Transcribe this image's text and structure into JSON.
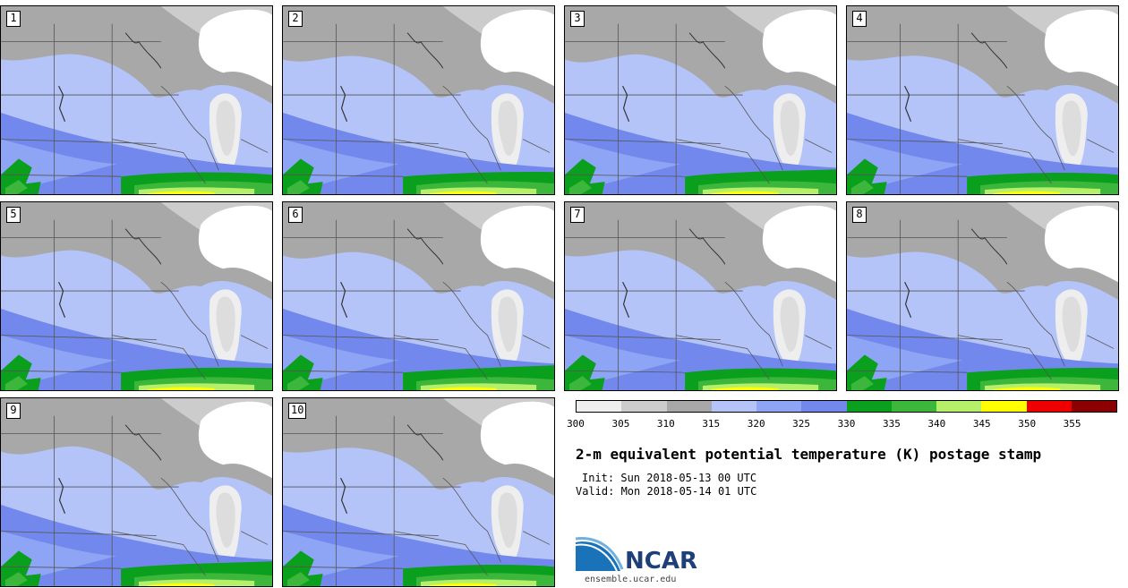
{
  "panels": [
    {
      "label": "1"
    },
    {
      "label": "2"
    },
    {
      "label": "3"
    },
    {
      "label": "4"
    },
    {
      "label": "5"
    },
    {
      "label": "6"
    },
    {
      "label": "7"
    },
    {
      "label": "8"
    },
    {
      "label": "9"
    },
    {
      "label": "10"
    }
  ],
  "colorbar": {
    "colors": [
      "#eeeeee",
      "#cccccc",
      "#a8a8a8",
      "#b4c4f8",
      "#8ea4f4",
      "#7388ec",
      "#0aa01e",
      "#3cb73c",
      "#b6f06a",
      "#ffff00",
      "#ee0000",
      "#8b0000"
    ],
    "ticks": [
      "300",
      "305",
      "310",
      "315",
      "320",
      "325",
      "330",
      "335",
      "340",
      "345",
      "350",
      "355"
    ]
  },
  "title": "2-m equivalent potential temperature (K) postage stamp",
  "init": "Init: Sun 2018-05-13 00 UTC",
  "valid": "Valid: Mon 2018-05-14 01 UTC",
  "logo": {
    "word": "NCAR",
    "url": "ensemble.ucar.edu"
  }
}
